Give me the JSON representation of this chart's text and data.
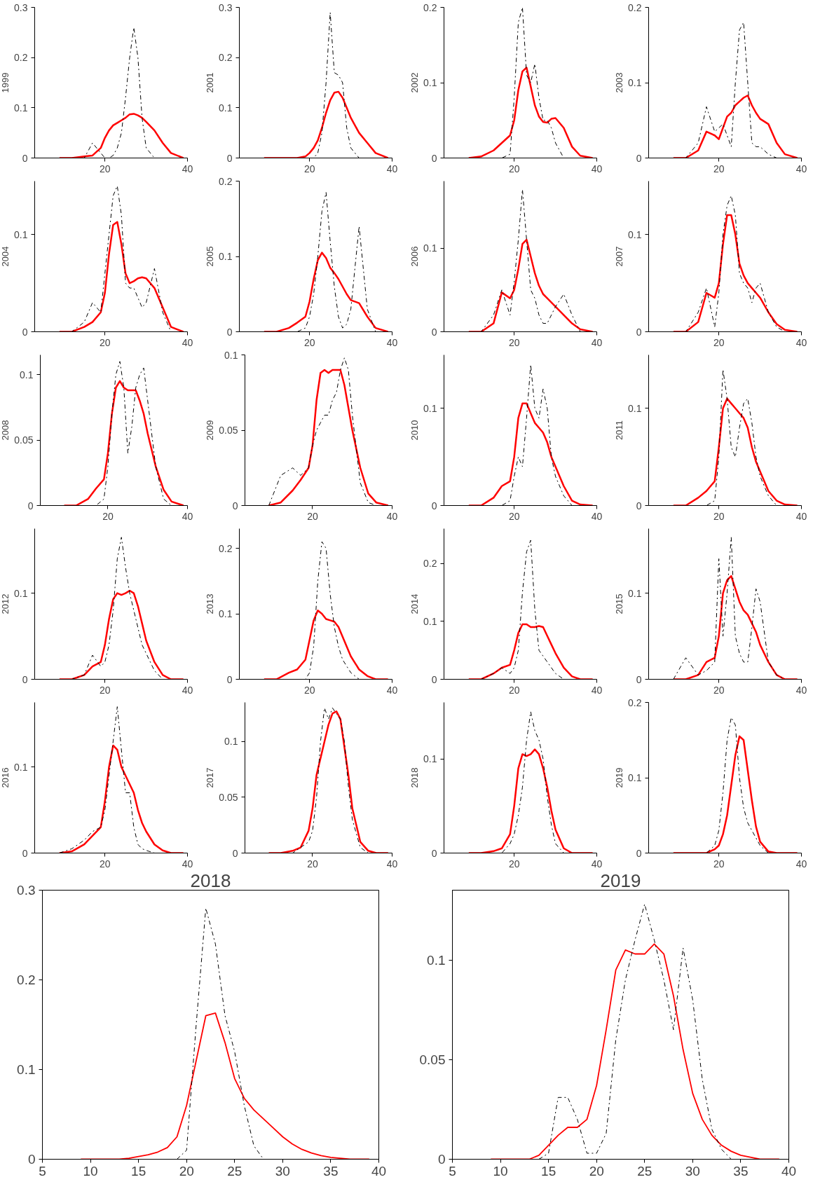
{
  "chart_data": [
    {
      "type": "line",
      "ylabel": "1999",
      "x": [
        9,
        12,
        15,
        17,
        19,
        20,
        21,
        22,
        23,
        24,
        25,
        26,
        27,
        28,
        29,
        30,
        32,
        34,
        36,
        39
      ],
      "xlim": [
        3,
        40
      ],
      "xticks": [
        20,
        40
      ],
      "ylim": [
        0,
        0.3
      ],
      "yticks": [
        0,
        0.1,
        0.2,
        0.3
      ],
      "series": [
        {
          "color": "#ff0000",
          "line_style": "solid",
          "values": [
            0,
            0,
            0.003,
            0.005,
            0.02,
            0.04,
            0.055,
            0.065,
            0.07,
            0.075,
            0.08,
            0.087,
            0.088,
            0.085,
            0.08,
            0.072,
            0.055,
            0.03,
            0.01,
            0
          ]
        },
        {
          "color": "#000000",
          "line_style": "dashdot",
          "values": [
            0,
            0,
            0,
            0.03,
            0.01,
            0,
            0,
            0.005,
            0.02,
            0.05,
            0.12,
            0.2,
            0.26,
            0.2,
            0.08,
            0.02,
            0,
            0,
            0,
            0
          ]
        }
      ]
    },
    {
      "type": "line",
      "ylabel": "2001",
      "x": [
        9,
        12,
        15,
        17,
        19,
        20,
        21,
        22,
        23,
        24,
        25,
        26,
        27,
        28,
        29,
        30,
        32,
        34,
        36,
        39
      ],
      "xlim": [
        3,
        40
      ],
      "xticks": [
        20,
        40
      ],
      "ylim": [
        0,
        0.3
      ],
      "yticks": [
        0,
        0.1,
        0.2,
        0.3
      ],
      "series": [
        {
          "color": "#ff0000",
          "line_style": "solid",
          "values": [
            0,
            0,
            0,
            0,
            0.003,
            0.01,
            0.02,
            0.035,
            0.06,
            0.09,
            0.115,
            0.13,
            0.132,
            0.12,
            0.1,
            0.08,
            0.05,
            0.03,
            0.01,
            0
          ]
        },
        {
          "color": "#000000",
          "line_style": "dashdot",
          "values": [
            0,
            0,
            0,
            0,
            0,
            0,
            0,
            0.01,
            0.05,
            0.15,
            0.29,
            0.17,
            0.165,
            0.15,
            0.06,
            0.02,
            0,
            0,
            0,
            0
          ]
        }
      ]
    },
    {
      "type": "line",
      "ylabel": "2002",
      "x": [
        9,
        12,
        15,
        17,
        19,
        20,
        21,
        22,
        23,
        24,
        25,
        26,
        27,
        28,
        29,
        30,
        32,
        34,
        36,
        39
      ],
      "xlim": [
        3,
        40
      ],
      "xticks": [
        20,
        40
      ],
      "ylim": [
        0,
        0.2
      ],
      "yticks": [
        0,
        0.1,
        0.2
      ],
      "series": [
        {
          "color": "#ff0000",
          "line_style": "solid",
          "values": [
            0,
            0.002,
            0.01,
            0.02,
            0.03,
            0.05,
            0.09,
            0.115,
            0.12,
            0.095,
            0.07,
            0.055,
            0.048,
            0.047,
            0.052,
            0.053,
            0.04,
            0.015,
            0.003,
            0
          ]
        },
        {
          "color": "#000000",
          "line_style": "dashdot",
          "values": [
            0,
            0,
            0,
            0,
            0.005,
            0.08,
            0.18,
            0.2,
            0.11,
            0.1,
            0.125,
            0.08,
            0.05,
            0.05,
            0.04,
            0.02,
            0,
            0,
            0,
            0
          ]
        }
      ]
    },
    {
      "type": "line",
      "ylabel": "2003",
      "x": [
        9,
        12,
        15,
        17,
        19,
        20,
        21,
        22,
        23,
        24,
        25,
        26,
        27,
        28,
        29,
        30,
        32,
        34,
        36,
        39
      ],
      "xlim": [
        3,
        40
      ],
      "xticks": [
        20,
        40
      ],
      "ylim": [
        0,
        0.2
      ],
      "yticks": [
        0,
        0.1,
        0.2
      ],
      "series": [
        {
          "color": "#ff0000",
          "line_style": "solid",
          "values": [
            0,
            0,
            0.01,
            0.035,
            0.03,
            0.025,
            0.04,
            0.055,
            0.06,
            0.07,
            0.075,
            0.08,
            0.083,
            0.07,
            0.06,
            0.052,
            0.045,
            0.02,
            0.005,
            0
          ]
        },
        {
          "color": "#000000",
          "line_style": "dashdot",
          "values": [
            0,
            0,
            0.02,
            0.068,
            0.035,
            0.04,
            0.045,
            0.03,
            0.015,
            0.1,
            0.17,
            0.18,
            0.1,
            0.02,
            0.015,
            0.015,
            0.005,
            0,
            0,
            0
          ]
        }
      ]
    },
    {
      "type": "line",
      "ylabel": "2004",
      "x": [
        9,
        12,
        15,
        17,
        19,
        20,
        21,
        22,
        23,
        24,
        25,
        26,
        27,
        28,
        29,
        30,
        32,
        34,
        36,
        39
      ],
      "xlim": [
        3,
        40
      ],
      "xticks": [
        20,
        40
      ],
      "ylim": [
        0,
        0.155
      ],
      "yticks": [
        0,
        0.1
      ],
      "series": [
        {
          "color": "#ff0000",
          "line_style": "solid",
          "values": [
            0,
            0,
            0.005,
            0.01,
            0.02,
            0.04,
            0.08,
            0.11,
            0.113,
            0.09,
            0.06,
            0.05,
            0.052,
            0.055,
            0.056,
            0.055,
            0.045,
            0.025,
            0.005,
            0
          ]
        },
        {
          "color": "#000000",
          "line_style": "dashdot",
          "values": [
            0,
            0,
            0.01,
            0.03,
            0.02,
            0.06,
            0.1,
            0.14,
            0.15,
            0.12,
            0.05,
            0.045,
            0.045,
            0.035,
            0.025,
            0.03,
            0.065,
            0.02,
            0,
            0
          ]
        }
      ]
    },
    {
      "type": "line",
      "ylabel": "2005",
      "x": [
        9,
        12,
        15,
        17,
        19,
        20,
        21,
        22,
        23,
        24,
        25,
        26,
        27,
        28,
        29,
        30,
        32,
        34,
        36,
        39
      ],
      "xlim": [
        3,
        40
      ],
      "xticks": [
        20,
        40
      ],
      "ylim": [
        0,
        0.2
      ],
      "yticks": [
        0,
        0.1,
        0.2
      ],
      "series": [
        {
          "color": "#ff0000",
          "line_style": "solid",
          "values": [
            0,
            0,
            0.005,
            0.012,
            0.02,
            0.04,
            0.07,
            0.095,
            0.105,
            0.098,
            0.085,
            0.078,
            0.07,
            0.06,
            0.05,
            0.042,
            0.038,
            0.02,
            0.005,
            0
          ]
        },
        {
          "color": "#000000",
          "line_style": "dashdot",
          "values": [
            0,
            0,
            0,
            0,
            0.005,
            0.02,
            0.05,
            0.1,
            0.16,
            0.185,
            0.12,
            0.06,
            0.02,
            0.005,
            0.01,
            0.03,
            0.14,
            0.03,
            0,
            0
          ]
        }
      ]
    },
    {
      "type": "line",
      "ylabel": "2006",
      "x": [
        9,
        12,
        15,
        17,
        19,
        20,
        21,
        22,
        23,
        24,
        25,
        26,
        27,
        28,
        29,
        30,
        32,
        34,
        36,
        39
      ],
      "xlim": [
        3,
        40
      ],
      "xticks": [
        20,
        40
      ],
      "ylim": [
        0,
        0.18
      ],
      "yticks": [
        0,
        0.1
      ],
      "series": [
        {
          "color": "#ff0000",
          "line_style": "solid",
          "values": [
            0,
            0,
            0.01,
            0.047,
            0.04,
            0.05,
            0.075,
            0.105,
            0.11,
            0.09,
            0.07,
            0.055,
            0.045,
            0.04,
            0.035,
            0.03,
            0.02,
            0.01,
            0.003,
            0
          ]
        },
        {
          "color": "#000000",
          "line_style": "dashdot",
          "values": [
            0,
            0,
            0.02,
            0.05,
            0.02,
            0.06,
            0.11,
            0.17,
            0.11,
            0.05,
            0.04,
            0.02,
            0.01,
            0.01,
            0.02,
            0.03,
            0.045,
            0.02,
            0,
            0
          ]
        }
      ]
    },
    {
      "type": "line",
      "ylabel": "2007",
      "x": [
        9,
        12,
        15,
        17,
        19,
        20,
        21,
        22,
        23,
        24,
        25,
        26,
        27,
        28,
        29,
        30,
        32,
        34,
        36,
        39
      ],
      "xlim": [
        3,
        40
      ],
      "xticks": [
        20,
        40
      ],
      "ylim": [
        0,
        0.155
      ],
      "yticks": [
        0,
        0.1
      ],
      "series": [
        {
          "color": "#ff0000",
          "line_style": "solid",
          "values": [
            0,
            0,
            0.01,
            0.04,
            0.035,
            0.05,
            0.09,
            0.12,
            0.12,
            0.1,
            0.07,
            0.058,
            0.05,
            0.045,
            0.04,
            0.035,
            0.02,
            0.008,
            0.002,
            0
          ]
        },
        {
          "color": "#000000",
          "line_style": "dashdot",
          "values": [
            0,
            0,
            0.02,
            0.045,
            0.005,
            0.04,
            0.1,
            0.13,
            0.14,
            0.12,
            0.06,
            0.05,
            0.045,
            0.03,
            0.045,
            0.05,
            0.02,
            0.005,
            0,
            0
          ]
        }
      ]
    },
    {
      "type": "line",
      "ylabel": "2008",
      "x": [
        9,
        12,
        15,
        17,
        19,
        20,
        21,
        22,
        23,
        24,
        25,
        26,
        27,
        28,
        29,
        30,
        32,
        34,
        36,
        39
      ],
      "xlim": [
        3,
        40
      ],
      "xticks": [
        20,
        40
      ],
      "ylim": [
        0,
        0.115
      ],
      "yticks": [
        0,
        0.05,
        0.1
      ],
      "series": [
        {
          "color": "#ff0000",
          "line_style": "solid",
          "values": [
            0,
            0,
            0.005,
            0.013,
            0.02,
            0.04,
            0.07,
            0.09,
            0.095,
            0.09,
            0.088,
            0.088,
            0.088,
            0.08,
            0.07,
            0.055,
            0.03,
            0.012,
            0.003,
            0
          ]
        },
        {
          "color": "#000000",
          "line_style": "dashdot",
          "values": [
            0,
            0,
            0,
            0,
            0.005,
            0.03,
            0.07,
            0.1,
            0.11,
            0.09,
            0.04,
            0.06,
            0.09,
            0.1,
            0.105,
            0.08,
            0.03,
            0.005,
            0,
            0
          ]
        }
      ]
    },
    {
      "type": "line",
      "ylabel": "2009",
      "x": [
        9,
        12,
        15,
        17,
        19,
        20,
        21,
        22,
        23,
        24,
        25,
        26,
        27,
        28,
        29,
        30,
        32,
        34,
        36,
        39
      ],
      "xlim": [
        3,
        40
      ],
      "xticks": [
        20,
        40
      ],
      "ylim": [
        0,
        0.1
      ],
      "yticks": [
        0,
        0.05,
        0.1
      ],
      "series": [
        {
          "color": "#ff0000",
          "line_style": "solid",
          "values": [
            0,
            0.002,
            0.01,
            0.017,
            0.025,
            0.04,
            0.07,
            0.088,
            0.09,
            0.088,
            0.09,
            0.09,
            0.09,
            0.08,
            0.065,
            0.05,
            0.025,
            0.008,
            0.002,
            0
          ]
        },
        {
          "color": "#000000",
          "line_style": "dashdot",
          "values": [
            0,
            0.02,
            0.025,
            0.02,
            0.025,
            0.04,
            0.05,
            0.055,
            0.06,
            0.06,
            0.07,
            0.075,
            0.09,
            0.098,
            0.09,
            0.06,
            0.015,
            0.002,
            0,
            0
          ]
        }
      ]
    },
    {
      "type": "line",
      "ylabel": "2010",
      "x": [
        9,
        12,
        15,
        17,
        19,
        20,
        21,
        22,
        23,
        24,
        25,
        26,
        27,
        28,
        29,
        30,
        32,
        34,
        36,
        39
      ],
      "xlim": [
        3,
        40
      ],
      "xticks": [
        20,
        40
      ],
      "ylim": [
        0,
        0.155
      ],
      "yticks": [
        0,
        0.1
      ],
      "series": [
        {
          "color": "#ff0000",
          "line_style": "solid",
          "values": [
            0,
            0,
            0.008,
            0.02,
            0.025,
            0.05,
            0.09,
            0.105,
            0.105,
            0.095,
            0.085,
            0.08,
            0.075,
            0.065,
            0.05,
            0.04,
            0.02,
            0.005,
            0.001,
            0
          ]
        },
        {
          "color": "#000000",
          "line_style": "dashdot",
          "values": [
            0,
            0,
            0,
            0,
            0.005,
            0.03,
            0.05,
            0.04,
            0.09,
            0.145,
            0.1,
            0.09,
            0.12,
            0.1,
            0.05,
            0.03,
            0.01,
            0,
            0,
            0
          ]
        }
      ]
    },
    {
      "type": "line",
      "ylabel": "2011",
      "x": [
        9,
        12,
        15,
        17,
        19,
        20,
        21,
        22,
        23,
        24,
        25,
        26,
        27,
        28,
        29,
        30,
        32,
        34,
        36,
        39
      ],
      "xlim": [
        3,
        40
      ],
      "xticks": [
        20,
        40
      ],
      "ylim": [
        0,
        0.155
      ],
      "yticks": [
        0,
        0.1
      ],
      "series": [
        {
          "color": "#ff0000",
          "line_style": "solid",
          "values": [
            0,
            0,
            0.008,
            0.015,
            0.025,
            0.06,
            0.1,
            0.11,
            0.105,
            0.1,
            0.095,
            0.09,
            0.08,
            0.06,
            0.045,
            0.035,
            0.015,
            0.005,
            0.001,
            0
          ]
        },
        {
          "color": "#000000",
          "line_style": "dashdot",
          "values": [
            0,
            0,
            0,
            0,
            0.005,
            0.05,
            0.14,
            0.11,
            0.06,
            0.05,
            0.08,
            0.105,
            0.11,
            0.085,
            0.05,
            0.03,
            0.01,
            0,
            0,
            0
          ]
        }
      ]
    },
    {
      "type": "line",
      "ylabel": "2012",
      "x": [
        9,
        12,
        15,
        17,
        19,
        20,
        21,
        22,
        23,
        24,
        25,
        26,
        27,
        28,
        29,
        30,
        32,
        34,
        36,
        39
      ],
      "xlim": [
        3,
        40
      ],
      "xticks": [
        20,
        40
      ],
      "ylim": [
        0,
        0.175
      ],
      "yticks": [
        0,
        0.1
      ],
      "series": [
        {
          "color": "#ff0000",
          "line_style": "solid",
          "values": [
            0,
            0,
            0.005,
            0.015,
            0.02,
            0.04,
            0.07,
            0.093,
            0.1,
            0.098,
            0.1,
            0.103,
            0.1,
            0.085,
            0.065,
            0.045,
            0.02,
            0.005,
            0,
            0
          ]
        },
        {
          "color": "#000000",
          "line_style": "dashdot",
          "values": [
            0,
            0,
            0.005,
            0.028,
            0.015,
            0.02,
            0.04,
            0.08,
            0.14,
            0.165,
            0.13,
            0.1,
            0.08,
            0.06,
            0.04,
            0.03,
            0.01,
            0,
            0,
            0
          ]
        }
      ]
    },
    {
      "type": "line",
      "ylabel": "2013",
      "x": [
        9,
        12,
        15,
        17,
        19,
        20,
        21,
        22,
        23,
        24,
        25,
        26,
        27,
        28,
        29,
        30,
        32,
        34,
        36,
        39
      ],
      "xlim": [
        3,
        40
      ],
      "xticks": [
        20,
        40
      ],
      "ylim": [
        0,
        0.23
      ],
      "yticks": [
        0,
        0.1,
        0.2
      ],
      "series": [
        {
          "color": "#ff0000",
          "line_style": "solid",
          "values": [
            0,
            0,
            0.01,
            0.015,
            0.03,
            0.06,
            0.09,
            0.105,
            0.1,
            0.092,
            0.09,
            0.088,
            0.08,
            0.065,
            0.05,
            0.035,
            0.015,
            0.005,
            0,
            0
          ]
        },
        {
          "color": "#000000",
          "line_style": "dashdot",
          "values": [
            0,
            0,
            0,
            0,
            0,
            0.01,
            0.05,
            0.15,
            0.21,
            0.2,
            0.13,
            0.08,
            0.05,
            0.03,
            0.02,
            0.01,
            0,
            0,
            0,
            0
          ]
        }
      ]
    },
    {
      "type": "line",
      "ylabel": "2014",
      "x": [
        9,
        12,
        15,
        17,
        19,
        20,
        21,
        22,
        23,
        24,
        25,
        26,
        27,
        28,
        29,
        30,
        32,
        34,
        36,
        39
      ],
      "xlim": [
        3,
        40
      ],
      "xticks": [
        20,
        40
      ],
      "ylim": [
        0,
        0.26
      ],
      "yticks": [
        0,
        0.1,
        0.2
      ],
      "series": [
        {
          "color": "#ff0000",
          "line_style": "solid",
          "values": [
            0,
            0,
            0.01,
            0.02,
            0.025,
            0.05,
            0.08,
            0.095,
            0.095,
            0.09,
            0.09,
            0.092,
            0.09,
            0.075,
            0.06,
            0.045,
            0.02,
            0.005,
            0,
            0
          ]
        },
        {
          "color": "#000000",
          "line_style": "dashdot",
          "values": [
            0,
            0,
            0.01,
            0.02,
            0.01,
            0.02,
            0.05,
            0.15,
            0.22,
            0.24,
            0.12,
            0.05,
            0.04,
            0.03,
            0.02,
            0.01,
            0,
            0,
            0,
            0
          ]
        }
      ]
    },
    {
      "type": "line",
      "ylabel": "2015",
      "x": [
        9,
        12,
        15,
        17,
        19,
        20,
        21,
        22,
        23,
        24,
        25,
        26,
        27,
        28,
        29,
        30,
        32,
        34,
        36,
        39
      ],
      "xlim": [
        3,
        40
      ],
      "xticks": [
        20,
        40
      ],
      "ylim": [
        0,
        0.175
      ],
      "yticks": [
        0,
        0.1
      ],
      "series": [
        {
          "color": "#ff0000",
          "line_style": "solid",
          "values": [
            0,
            0,
            0.005,
            0.02,
            0.025,
            0.05,
            0.1,
            0.115,
            0.12,
            0.105,
            0.09,
            0.08,
            0.075,
            0.065,
            0.055,
            0.04,
            0.02,
            0.005,
            0,
            0
          ]
        },
        {
          "color": "#000000",
          "line_style": "dashdot",
          "values": [
            0,
            0.025,
            0.005,
            0.01,
            0.02,
            0.14,
            0.05,
            0.1,
            0.165,
            0.05,
            0.03,
            0.02,
            0.02,
            0.06,
            0.105,
            0.09,
            0.02,
            0.005,
            0,
            0
          ]
        }
      ]
    },
    {
      "type": "line",
      "ylabel": "2016",
      "x": [
        9,
        12,
        15,
        17,
        19,
        20,
        21,
        22,
        23,
        24,
        25,
        26,
        27,
        28,
        29,
        30,
        32,
        34,
        36,
        39
      ],
      "xlim": [
        3,
        40
      ],
      "xticks": [
        20,
        40
      ],
      "ylim": [
        0,
        0.175
      ],
      "yticks": [
        0,
        0.1
      ],
      "series": [
        {
          "color": "#ff0000",
          "line_style": "solid",
          "values": [
            0,
            0.002,
            0.01,
            0.02,
            0.03,
            0.06,
            0.1,
            0.125,
            0.12,
            0.1,
            0.09,
            0.08,
            0.07,
            0.05,
            0.035,
            0.025,
            0.01,
            0.003,
            0,
            0
          ]
        },
        {
          "color": "#000000",
          "line_style": "dashdot",
          "values": [
            0,
            0.005,
            0.015,
            0.025,
            0.03,
            0.05,
            0.09,
            0.13,
            0.17,
            0.12,
            0.07,
            0.07,
            0.03,
            0.01,
            0.005,
            0.003,
            0,
            0,
            0,
            0
          ]
        }
      ]
    },
    {
      "type": "line",
      "ylabel": "2017",
      "x": [
        9,
        12,
        15,
        17,
        19,
        20,
        21,
        22,
        23,
        24,
        25,
        26,
        27,
        28,
        29,
        30,
        32,
        34,
        36,
        39
      ],
      "xlim": [
        3,
        40
      ],
      "xticks": [
        20,
        40
      ],
      "ylim": [
        0,
        0.135
      ],
      "yticks": [
        0,
        0.05,
        0.1
      ],
      "series": [
        {
          "color": "#ff0000",
          "line_style": "solid",
          "values": [
            0,
            0,
            0.002,
            0.005,
            0.02,
            0.04,
            0.07,
            0.085,
            0.1,
            0.115,
            0.125,
            0.127,
            0.12,
            0.095,
            0.07,
            0.04,
            0.01,
            0.002,
            0,
            0
          ]
        },
        {
          "color": "#000000",
          "line_style": "dashdot",
          "values": [
            0,
            0,
            0,
            0.005,
            0.01,
            0.02,
            0.05,
            0.1,
            0.13,
            0.12,
            0.13,
            0.125,
            0.12,
            0.1,
            0.06,
            0.03,
            0.005,
            0,
            0,
            0
          ]
        }
      ]
    },
    {
      "type": "line",
      "ylabel": "2018",
      "x": [
        9,
        12,
        15,
        17,
        19,
        20,
        21,
        22,
        23,
        24,
        25,
        26,
        27,
        28,
        29,
        30,
        32,
        34,
        36,
        39
      ],
      "xlim": [
        3,
        40
      ],
      "xticks": [
        20,
        40
      ],
      "ylim": [
        0,
        0.16
      ],
      "yticks": [
        0,
        0.1
      ],
      "series": [
        {
          "color": "#ff0000",
          "line_style": "solid",
          "values": [
            0,
            0,
            0.002,
            0.005,
            0.02,
            0.05,
            0.09,
            0.105,
            0.103,
            0.105,
            0.11,
            0.105,
            0.09,
            0.07,
            0.045,
            0.025,
            0.005,
            0,
            0,
            0
          ]
        },
        {
          "color": "#000000",
          "line_style": "dashdot",
          "values": [
            0,
            0,
            0,
            0,
            0.01,
            0.02,
            0.04,
            0.07,
            0.12,
            0.15,
            0.13,
            0.12,
            0.1,
            0.06,
            0.03,
            0.01,
            0,
            0,
            0,
            0
          ]
        }
      ]
    },
    {
      "type": "line",
      "ylabel": "2019",
      "x": [
        9,
        12,
        15,
        17,
        19,
        20,
        21,
        22,
        23,
        24,
        25,
        26,
        27,
        28,
        29,
        30,
        32,
        34,
        36,
        39
      ],
      "xlim": [
        3,
        40
      ],
      "xticks": [
        20,
        40
      ],
      "ylim": [
        0,
        0.2
      ],
      "yticks": [
        0,
        0.1,
        0.2
      ],
      "series": [
        {
          "color": "#ff0000",
          "line_style": "solid",
          "values": [
            0,
            0,
            0,
            0,
            0.005,
            0.01,
            0.025,
            0.05,
            0.09,
            0.13,
            0.155,
            0.15,
            0.11,
            0.07,
            0.035,
            0.015,
            0.002,
            0,
            0,
            0
          ]
        },
        {
          "color": "#000000",
          "line_style": "dashdot",
          "values": [
            0,
            0,
            0,
            0,
            0.01,
            0.03,
            0.08,
            0.15,
            0.18,
            0.17,
            0.1,
            0.06,
            0.04,
            0.03,
            0.02,
            0.01,
            0,
            0,
            0,
            0
          ]
        }
      ]
    },
    {
      "type": "line",
      "title": "2018",
      "xlim": [
        5,
        40
      ],
      "xticks": [
        5,
        10,
        15,
        20,
        25,
        30,
        35,
        40
      ],
      "ylim": [
        0,
        0.3
      ],
      "yticks": [
        0,
        0.1,
        0.2,
        0.3
      ],
      "series": [
        {
          "color": "#ff0000",
          "line_style": "solid",
          "x": [
            9,
            10,
            11,
            12,
            13,
            14,
            15,
            16,
            17,
            18,
            19,
            20,
            21,
            22,
            23,
            24,
            25,
            26,
            27,
            28,
            29,
            30,
            31,
            32,
            33,
            34,
            35,
            36,
            37,
            38,
            39
          ],
          "values": [
            0,
            0,
            0,
            0,
            0,
            0.001,
            0.003,
            0.005,
            0.008,
            0.013,
            0.025,
            0.06,
            0.11,
            0.16,
            0.163,
            0.13,
            0.09,
            0.068,
            0.055,
            0.045,
            0.035,
            0.025,
            0.017,
            0.011,
            0.007,
            0.004,
            0.002,
            0.001,
            0,
            0,
            0
          ]
        },
        {
          "color": "#000000",
          "line_style": "dashdot",
          "x": [
            19,
            20,
            21,
            22,
            23,
            24,
            25,
            26,
            27,
            28
          ],
          "values": [
            0,
            0.01,
            0.15,
            0.28,
            0.24,
            0.16,
            0.12,
            0.06,
            0.015,
            0
          ]
        }
      ]
    },
    {
      "type": "line",
      "title": "2019",
      "xlim": [
        5,
        40
      ],
      "xticks": [
        5,
        10,
        15,
        20,
        25,
        30,
        35,
        40
      ],
      "ylim": [
        0,
        0.135
      ],
      "yticks": [
        0,
        0.05,
        0.1
      ],
      "series": [
        {
          "color": "#ff0000",
          "line_style": "solid",
          "x": [
            9,
            10,
            11,
            12,
            13,
            14,
            15,
            16,
            17,
            18,
            19,
            20,
            21,
            22,
            23,
            24,
            25,
            26,
            27,
            28,
            29,
            30,
            31,
            32,
            33,
            34,
            35,
            36,
            37,
            38,
            39
          ],
          "values": [
            0,
            0,
            0,
            0,
            0,
            0.002,
            0.007,
            0.012,
            0.016,
            0.016,
            0.02,
            0.037,
            0.065,
            0.095,
            0.105,
            0.103,
            0.103,
            0.108,
            0.103,
            0.082,
            0.055,
            0.033,
            0.02,
            0.012,
            0.007,
            0.004,
            0.002,
            0.001,
            0,
            0,
            0
          ]
        },
        {
          "color": "#000000",
          "line_style": "dashdot",
          "x": [
            14,
            15,
            16,
            17,
            18,
            19,
            20,
            21,
            22,
            23,
            24,
            25,
            26,
            27,
            28,
            29,
            30,
            31,
            32,
            33,
            34
          ],
          "values": [
            0,
            0.003,
            0.031,
            0.031,
            0.02,
            0.003,
            0.003,
            0.013,
            0.06,
            0.09,
            0.11,
            0.128,
            0.11,
            0.09,
            0.065,
            0.106,
            0.08,
            0.04,
            0.015,
            0.005,
            0
          ]
        }
      ]
    }
  ]
}
